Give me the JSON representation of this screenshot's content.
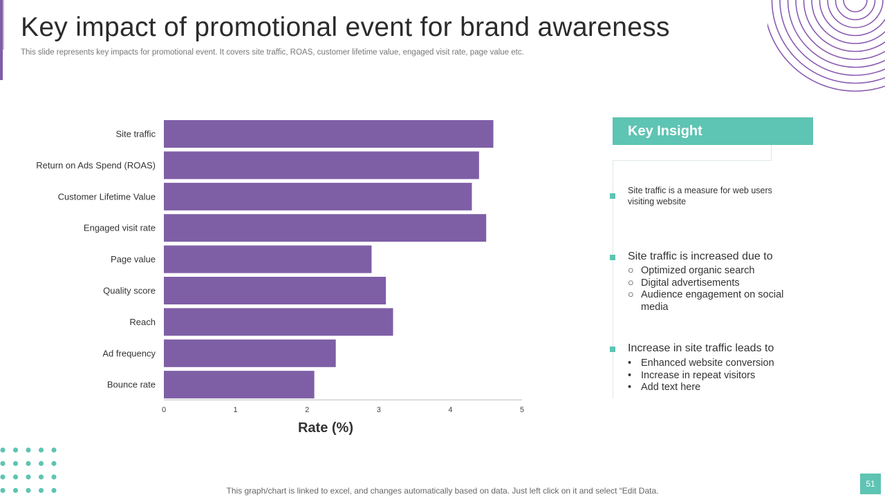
{
  "slide": {
    "title": "Key impact of promotional event for brand awareness",
    "subtitle": "This slide represents key impacts for promotional event. It covers site traffic, ROAS, customer lifetime value, engaged visit rate, page value etc.",
    "footer": "This graph/chart is linked to excel,  and changes automatically based on data. Just left click on it and select “Edit Data.",
    "page_number": "51"
  },
  "colors": {
    "bar": "#7e5fa6",
    "accent": "#5ec4b3",
    "ring": "#8a5cb0"
  },
  "chart_data": {
    "type": "bar",
    "orientation": "horizontal",
    "categories": [
      "Site traffic",
      "Return on Ads Spend (ROAS)",
      "Customer Lifetime Value",
      "Engaged visit rate",
      "Page value",
      "Quality score",
      "Reach",
      "Ad frequency",
      "Bounce rate"
    ],
    "values": [
      4.6,
      4.4,
      4.3,
      4.5,
      2.9,
      3.1,
      3.2,
      2.4,
      2.1
    ],
    "xlabel": "Rate (%)",
    "ylabel": "",
    "xlim": [
      0,
      5
    ],
    "xticks": [
      "0",
      "1",
      "2",
      "3",
      "4",
      "5"
    ],
    "grid": false,
    "legend": "none"
  },
  "insight": {
    "header": "Key Insight",
    "point1": "Site traffic  is a measure for web users visiting website",
    "point2": {
      "heading": "Site traffic is increased due to",
      "marker": "○",
      "items": [
        "Optimized organic search",
        "Digital advertisements",
        "Audience engagement on social media"
      ]
    },
    "point3": {
      "heading": "Increase  in site traffic leads to",
      "marker": "•",
      "items": [
        "Enhanced website conversion",
        "Increase in repeat visitors",
        "Add text here"
      ]
    }
  }
}
